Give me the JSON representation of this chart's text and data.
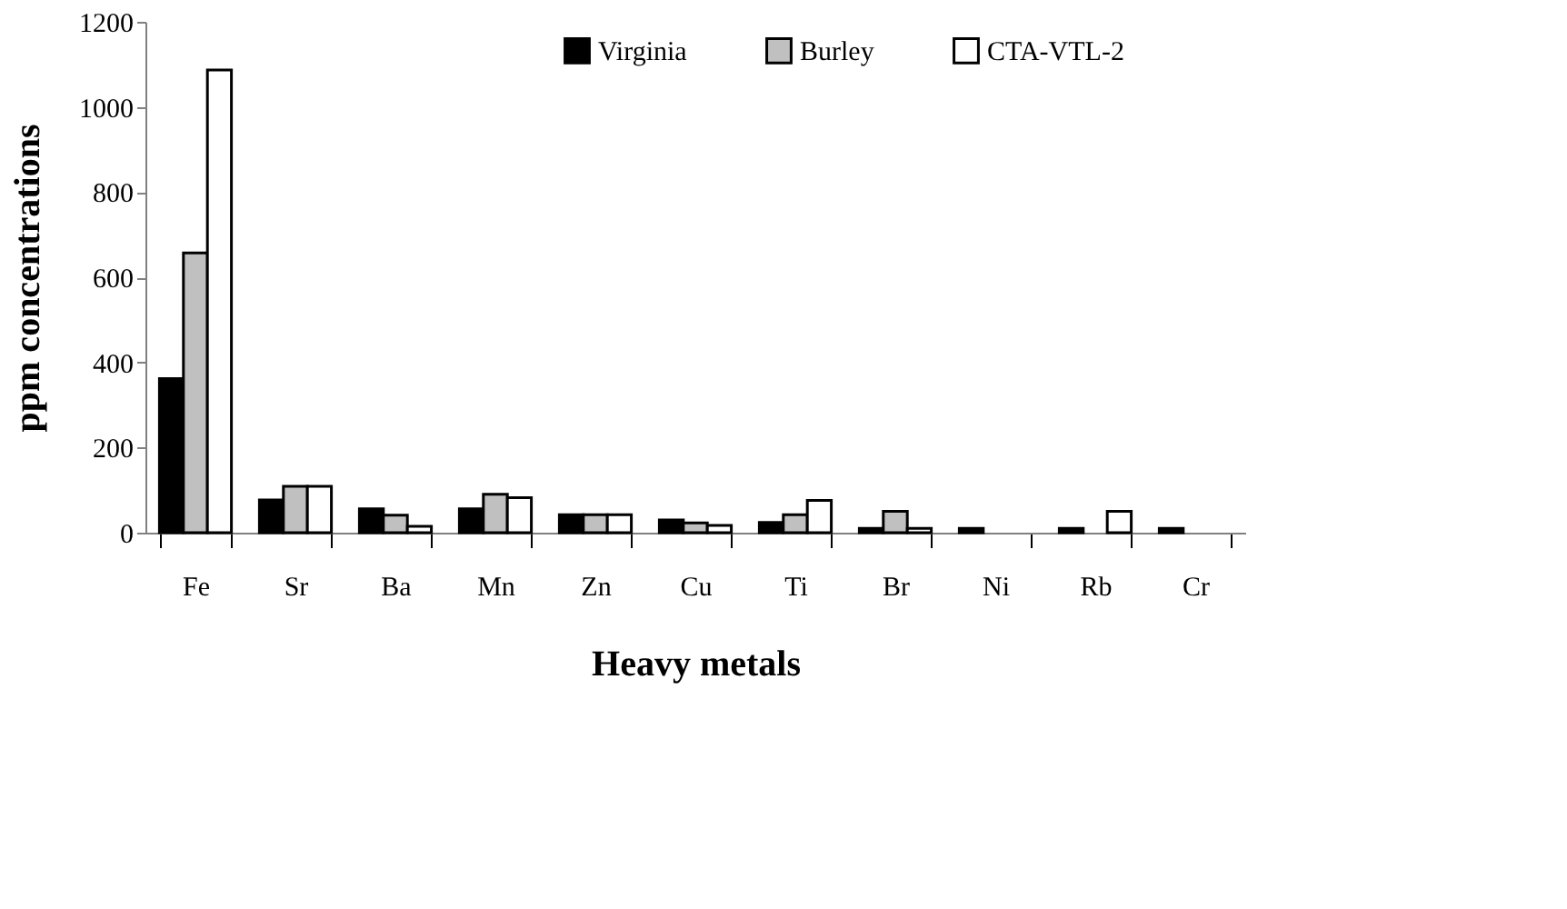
{
  "chart_data": {
    "type": "bar",
    "xlabel": "Heavy metals",
    "ylabel": "ppm concentrations",
    "categories": [
      "Fe",
      "Sr",
      "Ba",
      "Mn",
      "Zn",
      "Cu",
      "Ti",
      "Br",
      "Ni",
      "Rb",
      "Cr"
    ],
    "series": [
      {
        "name": "Virginia",
        "color": "#000000",
        "values": [
          362,
          77,
          56,
          56,
          42,
          30,
          24,
          10,
          10,
          10,
          10
        ]
      },
      {
        "name": "Burley",
        "color": "#c0c0c0",
        "values": [
          657,
          109,
          41,
          90,
          42,
          23,
          42,
          50,
          null,
          null,
          null
        ]
      },
      {
        "name": "CTA-VTL-2",
        "color": "#ffffff",
        "values": [
          1087,
          109,
          15,
          82,
          42,
          17,
          76,
          10,
          null,
          50,
          null
        ]
      }
    ],
    "ylim": [
      0,
      1200
    ],
    "yticks": [
      0,
      200,
      400,
      600,
      800,
      1000,
      1200
    ],
    "grid": false,
    "legend": "top"
  }
}
